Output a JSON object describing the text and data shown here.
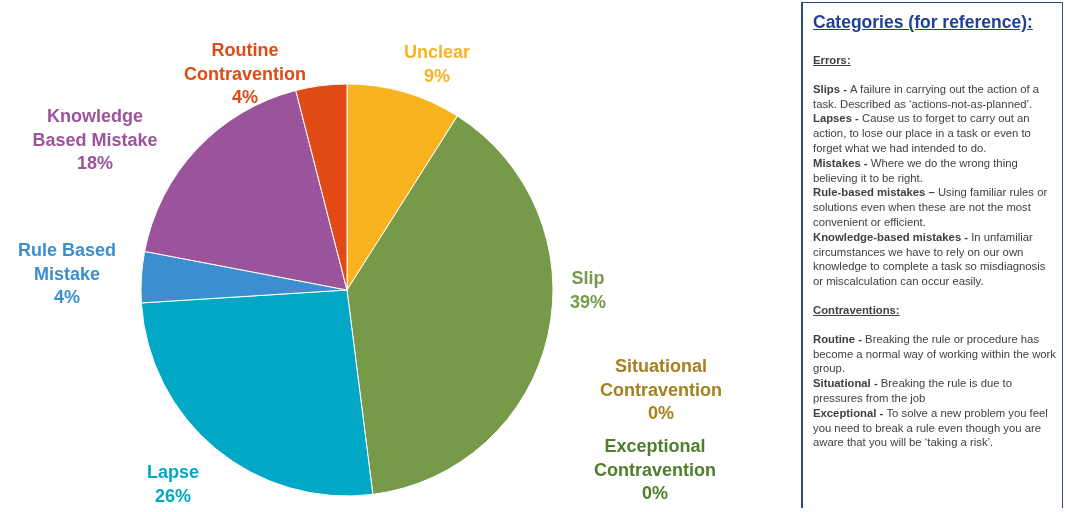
{
  "chart_data": [
    {
      "type": "pie",
      "categories": [
        "Unclear",
        "Slip",
        "Situational Contravention",
        "Exceptional Contravention",
        "Lapse",
        "Rule Based Mistake",
        "Knowledge Based Mistake",
        "Routine Contravention"
      ],
      "values": [
        9,
        39,
        0,
        0,
        26,
        4,
        18,
        4
      ],
      "colors": [
        "#f8b31e",
        "#76994a",
        "#a5801c",
        "#4f7d2a",
        "#00a8c6",
        "#3b8fd0",
        "#9b539b",
        "#e04a14"
      ],
      "value_labels": [
        "9%",
        "39%",
        "0%",
        "0%",
        "26%",
        "4%",
        "18%",
        "4%"
      ]
    },
    {
      "type": "other",
      "title": "Categories (for reference):",
      "annotations": [
        "Errors:",
        "Slips - A failure in carrying out the action of a task. Described as ‘actions-not-as-planned’.",
        "Lapses - Cause us to forget to carry out an action, to lose our place in a task or even to forget what we had intended to do.",
        "Mistakes - Where we do the wrong thing believing it to be right.",
        "Rule-based mistakes – Using familiar rules or solutions even when these are not the most convenient or efficient.",
        "Knowledge-based mistakes - In unfamiliar circumstances we have to rely on our own knowledge to complete a task so misdiagnosis or miscalculation can occur easily.",
        "Contraventions:",
        "Routine - Breaking the rule or procedure has become a normal way of working within the work group.",
        "Situational - Breaking the rule is due to pressures from the job",
        "Exceptional - To solve a new problem you feel you need to break a rule even though you are aware that you will be ‘taking a risk’."
      ]
    }
  ]
}
